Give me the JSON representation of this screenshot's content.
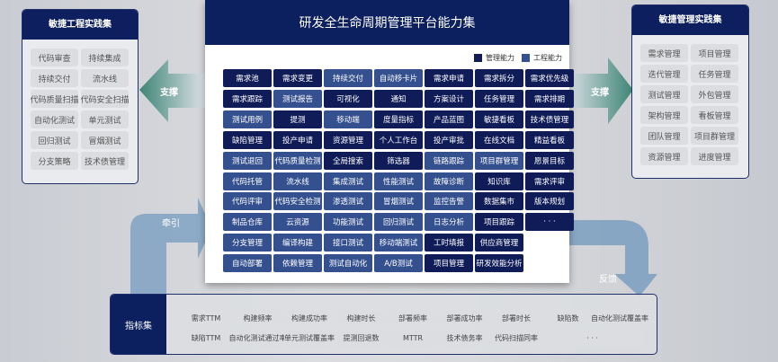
{
  "colors": {
    "management": "#0f1c58",
    "engineering": "#34508f",
    "header": "#0c1f5e"
  },
  "left_panel": {
    "title": "敏捷工程实践集",
    "items": [
      "代码审查",
      "持续集成",
      "持续交付",
      "流水线",
      "代码质量扫描",
      "代码安全扫描",
      "自动化测试",
      "单元测试",
      "回归测试",
      "冒烟测试",
      "分支策略",
      "技术债管理"
    ]
  },
  "right_panel": {
    "title": "敏捷管理实践集",
    "items": [
      "需求管理",
      "项目管理",
      "迭代管理",
      "任务管理",
      "测试管理",
      "外包管理",
      "架构管理",
      "看板管理",
      "团队管理",
      "项目群管理",
      "资源管理",
      "进度管理"
    ]
  },
  "arrows": {
    "left": "支撑",
    "right": "支撑",
    "pull": "牵引",
    "feedback": "反馈"
  },
  "center": {
    "title": "研发全生命周期管理平台能力集",
    "legend": [
      {
        "label": "管理能力",
        "type": "management"
      },
      {
        "label": "工程能力",
        "type": "engineering"
      }
    ],
    "rows": [
      [
        [
          "需求池",
          "M"
        ],
        [
          "需求变更",
          "M"
        ],
        [
          "持续交付",
          "E"
        ],
        [
          "自动移卡片",
          "E"
        ],
        [
          "需求申请",
          "M"
        ],
        [
          "需求拆分",
          "M"
        ],
        [
          "需求优先级",
          "M"
        ]
      ],
      [
        [
          "需求跟踪",
          "M"
        ],
        [
          "测试报告",
          "E"
        ],
        [
          "可视化",
          "M"
        ],
        [
          "通知",
          "M"
        ],
        [
          "方案设计",
          "M"
        ],
        [
          "任务管理",
          "M"
        ],
        [
          "需求排期",
          "M"
        ]
      ],
      [
        [
          "测试用例",
          "E"
        ],
        [
          "提测",
          "M"
        ],
        [
          "移动端",
          "E"
        ],
        [
          "度量指标",
          "M"
        ],
        [
          "产品蓝图",
          "M"
        ],
        [
          "敏捷看板",
          "M"
        ],
        [
          "技术债管理",
          "M"
        ]
      ],
      [
        [
          "缺陷管理",
          "M"
        ],
        [
          "投产申请",
          "M"
        ],
        [
          "资源管理",
          "M"
        ],
        [
          "个人工作台",
          "M"
        ],
        [
          "投产审批",
          "M"
        ],
        [
          "在线文档",
          "M"
        ],
        [
          "精益看板",
          "M"
        ]
      ],
      [
        [
          "测试退回",
          "E"
        ],
        [
          "代码质量检测",
          "E"
        ],
        [
          "全局搜索",
          "M"
        ],
        [
          "筛选器",
          "M"
        ],
        [
          "链路跟踪",
          "E"
        ],
        [
          "项目群管理",
          "E"
        ],
        [
          "愿景目标",
          "M"
        ]
      ],
      [
        [
          "代码托管",
          "E"
        ],
        [
          "流水线",
          "E"
        ],
        [
          "集成测试",
          "E"
        ],
        [
          "性能测试",
          "E"
        ],
        [
          "故障诊断",
          "E"
        ],
        [
          "知识库",
          "M"
        ],
        [
          "需求评审",
          "M"
        ]
      ],
      [
        [
          "代码评审",
          "E"
        ],
        [
          "代码安全检测",
          "E"
        ],
        [
          "渗透测试",
          "E"
        ],
        [
          "冒烟测试",
          "E"
        ],
        [
          "监控告警",
          "E"
        ],
        [
          "数据集市",
          "M"
        ],
        [
          "版本规划",
          "M"
        ]
      ],
      [
        [
          "制品仓库",
          "E"
        ],
        [
          "云资源",
          "E"
        ],
        [
          "功能测试",
          "E"
        ],
        [
          "回归测试",
          "E"
        ],
        [
          "日志分析",
          "E"
        ],
        [
          "项目跟踪",
          "M"
        ],
        [
          "· · ·",
          "M"
        ]
      ],
      [
        [
          "分支管理",
          "E"
        ],
        [
          "编译构建",
          "E"
        ],
        [
          "接口测试",
          "E"
        ],
        [
          "移动端测试",
          "E"
        ],
        [
          "工时填报",
          "M"
        ],
        [
          "供应商管理",
          "M"
        ]
      ],
      [
        [
          "自动部署",
          "E"
        ],
        [
          "依赖管理",
          "E"
        ],
        [
          "测试自动化",
          "E"
        ],
        [
          "A/B测试",
          "E"
        ],
        [
          "项目管理",
          "M"
        ],
        [
          "研发效能分析",
          "M"
        ]
      ]
    ]
  },
  "metrics": {
    "title": "指标集",
    "rows": [
      [
        "需求TTM",
        "构建频率",
        "构建成功率",
        "构建时长",
        "部署频率",
        "部署成功率",
        "部署时长",
        "缺陷数",
        "自动化测试覆盖率"
      ],
      [
        "缺陷TTM",
        "自动化测试通过率",
        "单元测试覆盖率",
        "提测回退数",
        "MTTR",
        "技术债务率",
        "代码扫描同率",
        "· · ·"
      ]
    ]
  }
}
